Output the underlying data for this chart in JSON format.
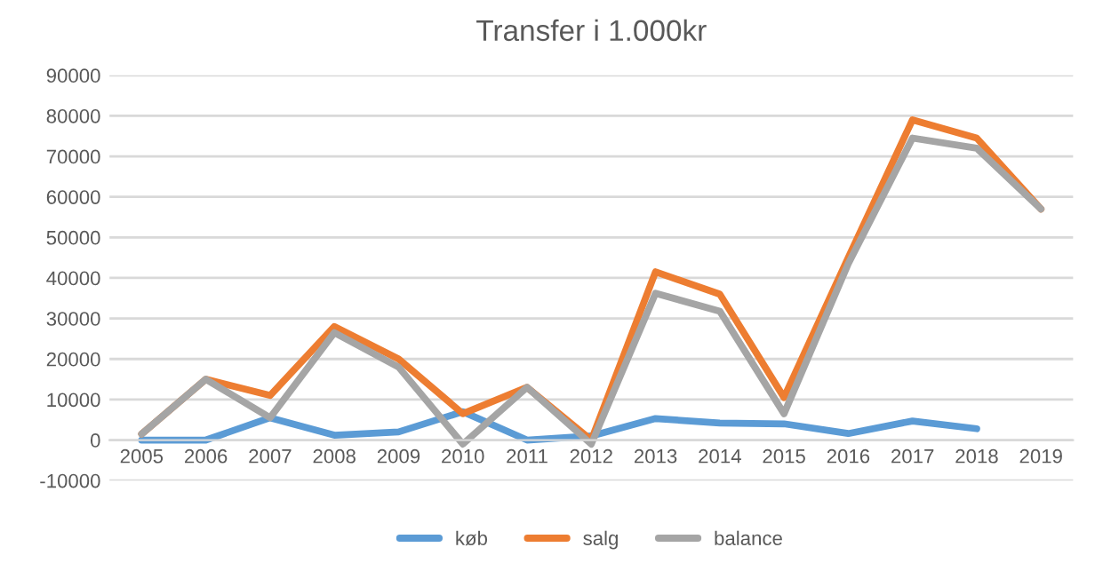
{
  "chart_data": {
    "type": "line",
    "title": "Transfer i 1.000kr",
    "categories": [
      "2005",
      "2006",
      "2007",
      "2008",
      "2009",
      "2010",
      "2011",
      "2012",
      "2013",
      "2014",
      "2015",
      "2016",
      "2017",
      "2018",
      "2019"
    ],
    "series": [
      {
        "name": "køb",
        "color": "#5b9bd5",
        "values": [
          0,
          0,
          5500,
          1200,
          2000,
          7000,
          0,
          1000,
          5300,
          4200,
          4000,
          1600,
          4700,
          2800,
          null
        ]
      },
      {
        "name": "salg",
        "color": "#ed7d31",
        "values": [
          1500,
          15000,
          11000,
          28000,
          20000,
          6500,
          13000,
          0,
          41500,
          36000,
          10500,
          45000,
          79000,
          74500,
          57000
        ]
      },
      {
        "name": "balance",
        "color": "#a5a5a5",
        "values": [
          1500,
          15000,
          5500,
          26500,
          18000,
          -1000,
          13000,
          -1000,
          36200,
          31800,
          6500,
          43500,
          74500,
          72000,
          57000
        ]
      }
    ],
    "ylim": [
      -10000,
      90000
    ],
    "yticks": [
      -10000,
      0,
      10000,
      20000,
      30000,
      40000,
      50000,
      60000,
      70000,
      80000,
      90000
    ],
    "grid": "y",
    "legend": "bottom",
    "marker": "none",
    "line_style": "solid"
  }
}
